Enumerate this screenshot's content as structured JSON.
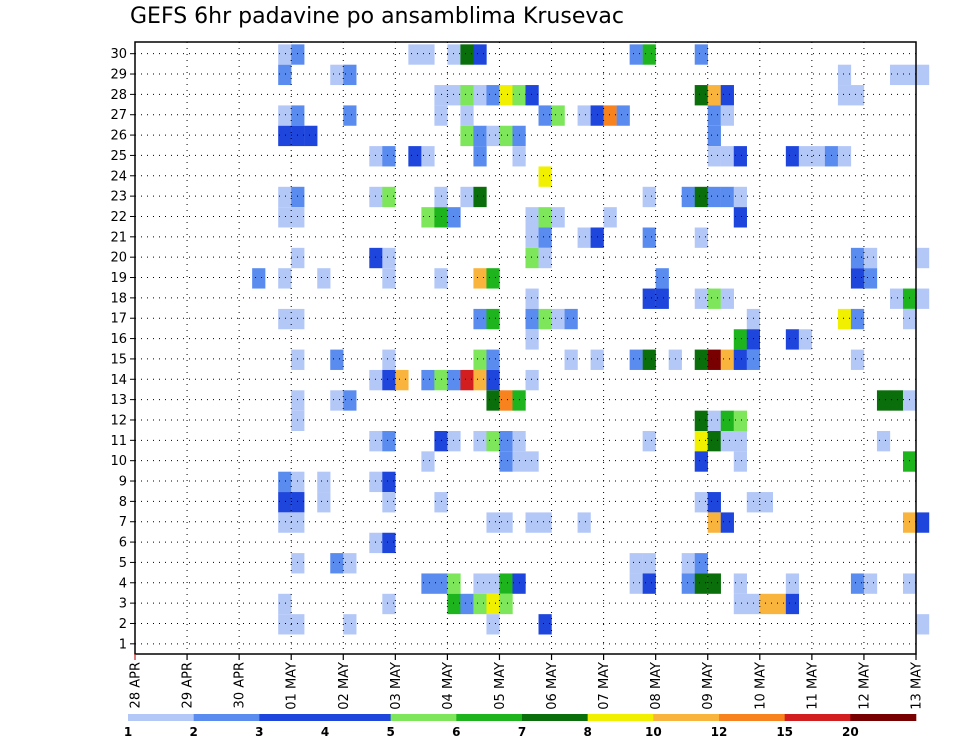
{
  "title": "GEFS 6hr padavine po ansamblima Krusevac",
  "chart_data": {
    "type": "heatmap",
    "title": "GEFS 6hr padavine po ansamblima Krusevac",
    "x_tick_labels": [
      "28 APR",
      "29 APR",
      "30 APR",
      "01 MAY",
      "02 MAY",
      "03 MAY",
      "04 MAY",
      "05 MAY",
      "06 MAY",
      "07 MAY",
      "08 MAY",
      "09 MAY",
      "10 MAY",
      "11 MAY",
      "12 MAY",
      "13 MAY"
    ],
    "y_tick_labels": [
      "1",
      "2",
      "3",
      "4",
      "5",
      "6",
      "7",
      "8",
      "9",
      "10",
      "11",
      "12",
      "13",
      "14",
      "15",
      "16",
      "17",
      "18",
      "19",
      "20",
      "21",
      "22",
      "23",
      "24",
      "25",
      "26",
      "27",
      "28",
      "29",
      "30"
    ],
    "xlim": [
      "28 APR 00Z",
      "13 MAY 00Z"
    ],
    "ylim": [
      1,
      30
    ],
    "time_step_hours": 6,
    "grid": true,
    "colorbar": {
      "labels": [
        "1",
        "2",
        "3",
        "4",
        "5",
        "6",
        "7",
        "8",
        "10",
        "12",
        "15",
        "20"
      ],
      "colors": [
        "#b4c8f8",
        "#5a8cf0",
        "#1e46dc",
        "#1e46dc",
        "#7de65a",
        "#1eb41e",
        "#0a6e0a",
        "#f0f000",
        "#f8b43c",
        "#f8821e",
        "#d21e1e",
        "#780000"
      ]
    },
    "cells": [
      [
        30,
        "30 APR 18Z",
        1
      ],
      [
        30,
        "01 MAY 00Z",
        2
      ],
      [
        30,
        "03 MAY 06Z",
        1
      ],
      [
        30,
        "03 MAY 12Z",
        1
      ],
      [
        30,
        "04 MAY 00Z",
        1
      ],
      [
        30,
        "04 MAY 06Z",
        7
      ],
      [
        30,
        "04 MAY 12Z",
        3
      ],
      [
        30,
        "07 MAY 12Z",
        2
      ],
      [
        30,
        "07 MAY 18Z",
        6
      ],
      [
        30,
        "08 MAY 18Z",
        2
      ],
      [
        29,
        "30 APR 18Z",
        2
      ],
      [
        29,
        "01 MAY 18Z",
        1
      ],
      [
        29,
        "02 MAY 00Z",
        2
      ],
      [
        29,
        "11 MAY 12Z",
        1
      ],
      [
        29,
        "12 MAY 12Z",
        1
      ],
      [
        29,
        "12 MAY 18Z",
        1
      ],
      [
        29,
        "13 MAY 00Z",
        1
      ],
      [
        28,
        "03 MAY 18Z",
        1
      ],
      [
        28,
        "04 MAY 00Z",
        1
      ],
      [
        28,
        "04 MAY 06Z",
        5
      ],
      [
        28,
        "04 MAY 12Z",
        1
      ],
      [
        28,
        "04 MAY 18Z",
        2
      ],
      [
        28,
        "05 MAY 00Z",
        8
      ],
      [
        28,
        "05 MAY 06Z",
        5
      ],
      [
        28,
        "05 MAY 12Z",
        3
      ],
      [
        28,
        "08 MAY 18Z",
        7
      ],
      [
        28,
        "09 MAY 00Z",
        10
      ],
      [
        28,
        "09 MAY 06Z",
        3
      ],
      [
        28,
        "11 MAY 12Z",
        1
      ],
      [
        28,
        "11 MAY 18Z",
        1
      ],
      [
        27,
        "30 APR 18Z",
        1
      ],
      [
        27,
        "01 MAY 00Z",
        2
      ],
      [
        27,
        "02 MAY 00Z",
        2
      ],
      [
        27,
        "03 MAY 18Z",
        1
      ],
      [
        27,
        "04 MAY 06Z",
        1
      ],
      [
        27,
        "05 MAY 18Z",
        2
      ],
      [
        27,
        "06 MAY 00Z",
        5
      ],
      [
        27,
        "06 MAY 12Z",
        1
      ],
      [
        27,
        "06 MAY 18Z",
        3
      ],
      [
        27,
        "07 MAY 00Z",
        12
      ],
      [
        27,
        "07 MAY 06Z",
        2
      ],
      [
        27,
        "09 MAY 00Z",
        2
      ],
      [
        27,
        "09 MAY 06Z",
        1
      ],
      [
        26,
        "30 APR 18Z",
        3
      ],
      [
        26,
        "01 MAY 00Z",
        3
      ],
      [
        26,
        "01 MAY 06Z",
        4
      ],
      [
        26,
        "04 MAY 06Z",
        5
      ],
      [
        26,
        "04 MAY 12Z",
        2
      ],
      [
        26,
        "04 MAY 18Z",
        1
      ],
      [
        26,
        "05 MAY 00Z",
        5
      ],
      [
        26,
        "05 MAY 06Z",
        2
      ],
      [
        26,
        "09 MAY 00Z",
        2
      ],
      [
        25,
        "02 MAY 12Z",
        1
      ],
      [
        25,
        "02 MAY 18Z",
        2
      ],
      [
        25,
        "03 MAY 06Z",
        3
      ],
      [
        25,
        "03 MAY 12Z",
        1
      ],
      [
        25,
        "04 MAY 12Z",
        2
      ],
      [
        25,
        "05 MAY 06Z",
        1
      ],
      [
        25,
        "09 MAY 00Z",
        1
      ],
      [
        25,
        "09 MAY 06Z",
        1
      ],
      [
        25,
        "09 MAY 12Z",
        3
      ],
      [
        25,
        "10 MAY 12Z",
        3
      ],
      [
        25,
        "10 MAY 18Z",
        1
      ],
      [
        25,
        "11 MAY 00Z",
        1
      ],
      [
        25,
        "11 MAY 06Z",
        2
      ],
      [
        25,
        "11 MAY 12Z",
        1
      ],
      [
        24,
        "05 MAY 18Z",
        8
      ],
      [
        23,
        "30 APR 18Z",
        1
      ],
      [
        23,
        "01 MAY 00Z",
        2
      ],
      [
        23,
        "02 MAY 12Z",
        1
      ],
      [
        23,
        "02 MAY 18Z",
        5
      ],
      [
        23,
        "03 MAY 18Z",
        1
      ],
      [
        23,
        "04 MAY 06Z",
        1
      ],
      [
        23,
        "04 MAY 12Z",
        7
      ],
      [
        23,
        "07 MAY 18Z",
        1
      ],
      [
        23,
        "08 MAY 12Z",
        2
      ],
      [
        23,
        "08 MAY 18Z",
        7
      ],
      [
        23,
        "09 MAY 00Z",
        2
      ],
      [
        23,
        "09 MAY 06Z",
        2
      ],
      [
        23,
        "09 MAY 12Z",
        1
      ],
      [
        22,
        "30 APR 18Z",
        1
      ],
      [
        22,
        "01 MAY 00Z",
        1
      ],
      [
        22,
        "03 MAY 12Z",
        5
      ],
      [
        22,
        "03 MAY 18Z",
        6
      ],
      [
        22,
        "04 MAY 00Z",
        2
      ],
      [
        22,
        "05 MAY 12Z",
        1
      ],
      [
        22,
        "05 MAY 18Z",
        5
      ],
      [
        22,
        "06 MAY 00Z",
        1
      ],
      [
        22,
        "07 MAY 00Z",
        1
      ],
      [
        22,
        "09 MAY 12Z",
        3
      ],
      [
        21,
        "05 MAY 12Z",
        1
      ],
      [
        21,
        "05 MAY 18Z",
        2
      ],
      [
        21,
        "06 MAY 12Z",
        1
      ],
      [
        21,
        "06 MAY 18Z",
        3
      ],
      [
        21,
        "07 MAY 18Z",
        2
      ],
      [
        21,
        "08 MAY 18Z",
        1
      ],
      [
        20,
        "01 MAY 00Z",
        1
      ],
      [
        20,
        "02 MAY 12Z",
        3
      ],
      [
        20,
        "02 MAY 18Z",
        1
      ],
      [
        20,
        "05 MAY 12Z",
        5
      ],
      [
        20,
        "05 MAY 18Z",
        1
      ],
      [
        20,
        "11 MAY 18Z",
        2
      ],
      [
        20,
        "12 MAY 00Z",
        1
      ],
      [
        20,
        "13 MAY 00Z",
        1
      ],
      [
        19,
        "30 APR 06Z",
        2
      ],
      [
        19,
        "30 APR 18Z",
        1
      ],
      [
        19,
        "01 MAY 12Z",
        1
      ],
      [
        19,
        "02 MAY 18Z",
        1
      ],
      [
        19,
        "03 MAY 18Z",
        1
      ],
      [
        19,
        "04 MAY 12Z",
        10
      ],
      [
        19,
        "04 MAY 18Z",
        6
      ],
      [
        19,
        "08 MAY 00Z",
        2
      ],
      [
        19,
        "11 MAY 18Z",
        3
      ],
      [
        19,
        "12 MAY 00Z",
        2
      ],
      [
        18,
        "05 MAY 12Z",
        1
      ],
      [
        18,
        "07 MAY 18Z",
        3
      ],
      [
        18,
        "08 MAY 00Z",
        3
      ],
      [
        18,
        "08 MAY 18Z",
        1
      ],
      [
        18,
        "09 MAY 00Z",
        5
      ],
      [
        18,
        "09 MAY 06Z",
        1
      ],
      [
        18,
        "12 MAY 12Z",
        1
      ],
      [
        18,
        "12 MAY 18Z",
        6
      ],
      [
        18,
        "13 MAY 00Z",
        1
      ],
      [
        17,
        "30 APR 18Z",
        1
      ],
      [
        17,
        "01 MAY 00Z",
        1
      ],
      [
        17,
        "04 MAY 12Z",
        2
      ],
      [
        17,
        "04 MAY 18Z",
        6
      ],
      [
        17,
        "05 MAY 12Z",
        2
      ],
      [
        17,
        "05 MAY 18Z",
        5
      ],
      [
        17,
        "06 MAY 00Z",
        1
      ],
      [
        17,
        "06 MAY 06Z",
        2
      ],
      [
        17,
        "09 MAY 18Z",
        1
      ],
      [
        17,
        "11 MAY 12Z",
        8
      ],
      [
        17,
        "11 MAY 18Z",
        2
      ],
      [
        17,
        "12 MAY 18Z",
        1
      ],
      [
        16,
        "05 MAY 12Z",
        1
      ],
      [
        16,
        "09 MAY 12Z",
        6
      ],
      [
        16,
        "09 MAY 18Z",
        3
      ],
      [
        16,
        "10 MAY 12Z",
        3
      ],
      [
        16,
        "10 MAY 18Z",
        1
      ],
      [
        15,
        "01 MAY 00Z",
        1
      ],
      [
        15,
        "01 MAY 18Z",
        2
      ],
      [
        15,
        "02 MAY 18Z",
        1
      ],
      [
        15,
        "04 MAY 12Z",
        5
      ],
      [
        15,
        "04 MAY 18Z",
        2
      ],
      [
        15,
        "06 MAY 06Z",
        1
      ],
      [
        15,
        "06 MAY 18Z",
        1
      ],
      [
        15,
        "07 MAY 12Z",
        2
      ],
      [
        15,
        "07 MAY 18Z",
        7
      ],
      [
        15,
        "08 MAY 06Z",
        1
      ],
      [
        15,
        "08 MAY 18Z",
        7
      ],
      [
        15,
        "09 MAY 00Z",
        20
      ],
      [
        15,
        "09 MAY 06Z",
        10
      ],
      [
        15,
        "09 MAY 12Z",
        3
      ],
      [
        15,
        "09 MAY 18Z",
        2
      ],
      [
        15,
        "11 MAY 18Z",
        1
      ],
      [
        14,
        "02 MAY 12Z",
        1
      ],
      [
        14,
        "02 MAY 18Z",
        3
      ],
      [
        14,
        "03 MAY 00Z",
        10
      ],
      [
        14,
        "03 MAY 12Z",
        2
      ],
      [
        14,
        "03 MAY 18Z",
        5
      ],
      [
        14,
        "04 MAY 00Z",
        2
      ],
      [
        14,
        "04 MAY 06Z",
        15
      ],
      [
        14,
        "04 MAY 12Z",
        10
      ],
      [
        14,
        "04 MAY 18Z",
        3
      ],
      [
        14,
        "05 MAY 12Z",
        1
      ],
      [
        13,
        "01 MAY 00Z",
        1
      ],
      [
        13,
        "01 MAY 18Z",
        1
      ],
      [
        13,
        "02 MAY 00Z",
        2
      ],
      [
        13,
        "04 MAY 18Z",
        7
      ],
      [
        13,
        "05 MAY 00Z",
        12
      ],
      [
        13,
        "05 MAY 06Z",
        6
      ],
      [
        13,
        "12 MAY 06Z",
        7
      ],
      [
        13,
        "12 MAY 12Z",
        7
      ],
      [
        13,
        "12 MAY 18Z",
        1
      ],
      [
        12,
        "01 MAY 00Z",
        1
      ],
      [
        12,
        "08 MAY 18Z",
        7
      ],
      [
        12,
        "09 MAY 00Z",
        1
      ],
      [
        12,
        "09 MAY 06Z",
        6
      ],
      [
        12,
        "09 MAY 12Z",
        5
      ],
      [
        11,
        "02 MAY 12Z",
        1
      ],
      [
        11,
        "02 MAY 18Z",
        2
      ],
      [
        11,
        "03 MAY 18Z",
        3
      ],
      [
        11,
        "04 MAY 00Z",
        1
      ],
      [
        11,
        "04 MAY 12Z",
        1
      ],
      [
        11,
        "04 MAY 18Z",
        5
      ],
      [
        11,
        "05 MAY 00Z",
        2
      ],
      [
        11,
        "05 MAY 06Z",
        1
      ],
      [
        11,
        "07 MAY 18Z",
        1
      ],
      [
        11,
        "08 MAY 18Z",
        8
      ],
      [
        11,
        "09 MAY 00Z",
        7
      ],
      [
        11,
        "09 MAY 06Z",
        1
      ],
      [
        11,
        "09 MAY 12Z",
        1
      ],
      [
        11,
        "12 MAY 06Z",
        1
      ],
      [
        10,
        "03 MAY 12Z",
        1
      ],
      [
        10,
        "05 MAY 00Z",
        2
      ],
      [
        10,
        "05 MAY 06Z",
        1
      ],
      [
        10,
        "05 MAY 12Z",
        1
      ],
      [
        10,
        "08 MAY 18Z",
        3
      ],
      [
        10,
        "09 MAY 12Z",
        1
      ],
      [
        10,
        "12 MAY 18Z",
        6
      ],
      [
        9,
        "30 APR 18Z",
        2
      ],
      [
        9,
        "01 MAY 00Z",
        1
      ],
      [
        9,
        "01 MAY 12Z",
        1
      ],
      [
        9,
        "02 MAY 12Z",
        1
      ],
      [
        9,
        "02 MAY 18Z",
        3
      ],
      [
        8,
        "30 APR 18Z",
        3
      ],
      [
        8,
        "01 MAY 00Z",
        3
      ],
      [
        8,
        "01 MAY 12Z",
        1
      ],
      [
        8,
        "02 MAY 18Z",
        1
      ],
      [
        8,
        "03 MAY 18Z",
        1
      ],
      [
        8,
        "08 MAY 18Z",
        1
      ],
      [
        8,
        "09 MAY 00Z",
        3
      ],
      [
        8,
        "09 MAY 18Z",
        1
      ],
      [
        8,
        "10 MAY 00Z",
        1
      ],
      [
        7,
        "30 APR 18Z",
        1
      ],
      [
        7,
        "01 MAY 00Z",
        1
      ],
      [
        7,
        "04 MAY 18Z",
        1
      ],
      [
        7,
        "05 MAY 00Z",
        1
      ],
      [
        7,
        "05 MAY 12Z",
        1
      ],
      [
        7,
        "05 MAY 18Z",
        1
      ],
      [
        7,
        "06 MAY 12Z",
        1
      ],
      [
        7,
        "09 MAY 00Z",
        10
      ],
      [
        7,
        "09 MAY 06Z",
        3
      ],
      [
        7,
        "12 MAY 18Z",
        10
      ],
      [
        7,
        "13 MAY 00Z",
        3
      ],
      [
        6,
        "02 MAY 12Z",
        1
      ],
      [
        6,
        "02 MAY 18Z",
        3
      ],
      [
        5,
        "01 MAY 00Z",
        1
      ],
      [
        5,
        "01 MAY 18Z",
        2
      ],
      [
        5,
        "02 MAY 00Z",
        1
      ],
      [
        5,
        "07 MAY 12Z",
        1
      ],
      [
        5,
        "07 MAY 18Z",
        1
      ],
      [
        5,
        "08 MAY 12Z",
        1
      ],
      [
        5,
        "08 MAY 18Z",
        2
      ],
      [
        4,
        "03 MAY 12Z",
        2
      ],
      [
        4,
        "03 MAY 18Z",
        2
      ],
      [
        4,
        "04 MAY 00Z",
        5
      ],
      [
        4,
        "04 MAY 12Z",
        1
      ],
      [
        4,
        "04 MAY 18Z",
        1
      ],
      [
        4,
        "05 MAY 00Z",
        6
      ],
      [
        4,
        "05 MAY 06Z",
        3
      ],
      [
        4,
        "07 MAY 12Z",
        1
      ],
      [
        4,
        "07 MAY 18Z",
        3
      ],
      [
        4,
        "08 MAY 12Z",
        2
      ],
      [
        4,
        "08 MAY 18Z",
        7
      ],
      [
        4,
        "09 MAY 00Z",
        7
      ],
      [
        4,
        "09 MAY 12Z",
        1
      ],
      [
        4,
        "10 MAY 12Z",
        1
      ],
      [
        4,
        "11 MAY 18Z",
        2
      ],
      [
        4,
        "12 MAY 00Z",
        1
      ],
      [
        4,
        "12 MAY 18Z",
        1
      ],
      [
        3,
        "30 APR 18Z",
        1
      ],
      [
        3,
        "02 MAY 18Z",
        1
      ],
      [
        3,
        "04 MAY 00Z",
        6
      ],
      [
        3,
        "04 MAY 06Z",
        2
      ],
      [
        3,
        "04 MAY 12Z",
        5
      ],
      [
        3,
        "04 MAY 18Z",
        8
      ],
      [
        3,
        "05 MAY 00Z",
        5
      ],
      [
        3,
        "09 MAY 12Z",
        1
      ],
      [
        3,
        "09 MAY 18Z",
        1
      ],
      [
        3,
        "10 MAY 00Z",
        10
      ],
      [
        3,
        "10 MAY 06Z",
        10
      ],
      [
        3,
        "10 MAY 12Z",
        3
      ],
      [
        2,
        "30 APR 18Z",
        1
      ],
      [
        2,
        "01 MAY 00Z",
        1
      ],
      [
        2,
        "02 MAY 00Z",
        1
      ],
      [
        2,
        "04 MAY 18Z",
        1
      ],
      [
        2,
        "05 MAY 18Z",
        3
      ],
      [
        2,
        "13 MAY 00Z",
        1
      ]
    ]
  }
}
